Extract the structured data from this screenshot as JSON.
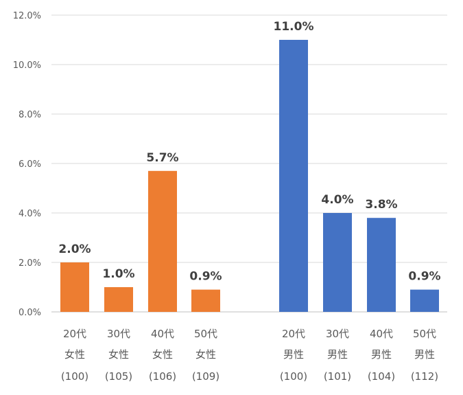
{
  "colors": {
    "female": "#ED7D31",
    "male": "#4472C4"
  },
  "chart_data": {
    "type": "bar",
    "title": "",
    "xlabel": "",
    "ylabel": "",
    "ylim": [
      0,
      12
    ],
    "y_ticks": [
      "0.0%",
      "2.0%",
      "4.0%",
      "6.0%",
      "8.0%",
      "10.0%",
      "12.0%"
    ],
    "grid": true,
    "legend": "none",
    "categories": [
      {
        "age": "20代",
        "gender": "女性",
        "n": "(100)",
        "group": "female",
        "value": 2.0,
        "label": "2.0%"
      },
      {
        "age": "30代",
        "gender": "女性",
        "n": "(105)",
        "group": "female",
        "value": 1.0,
        "label": "1.0%"
      },
      {
        "age": "40代",
        "gender": "女性",
        "n": "(106)",
        "group": "female",
        "value": 5.7,
        "label": "5.7%"
      },
      {
        "age": "50代",
        "gender": "女性",
        "n": "(109)",
        "group": "female",
        "value": 0.9,
        "label": "0.9%"
      },
      {
        "age": "20代",
        "gender": "男性",
        "n": "(100)",
        "group": "male",
        "value": 11.0,
        "label": "11.0%"
      },
      {
        "age": "30代",
        "gender": "男性",
        "n": "(101)",
        "group": "male",
        "value": 4.0,
        "label": "4.0%"
      },
      {
        "age": "40代",
        "gender": "男性",
        "n": "(104)",
        "group": "male",
        "value": 3.8,
        "label": "3.8%"
      },
      {
        "age": "50代",
        "gender": "男性",
        "n": "(112)",
        "group": "male",
        "value": 0.9,
        "label": "0.9%"
      }
    ]
  }
}
